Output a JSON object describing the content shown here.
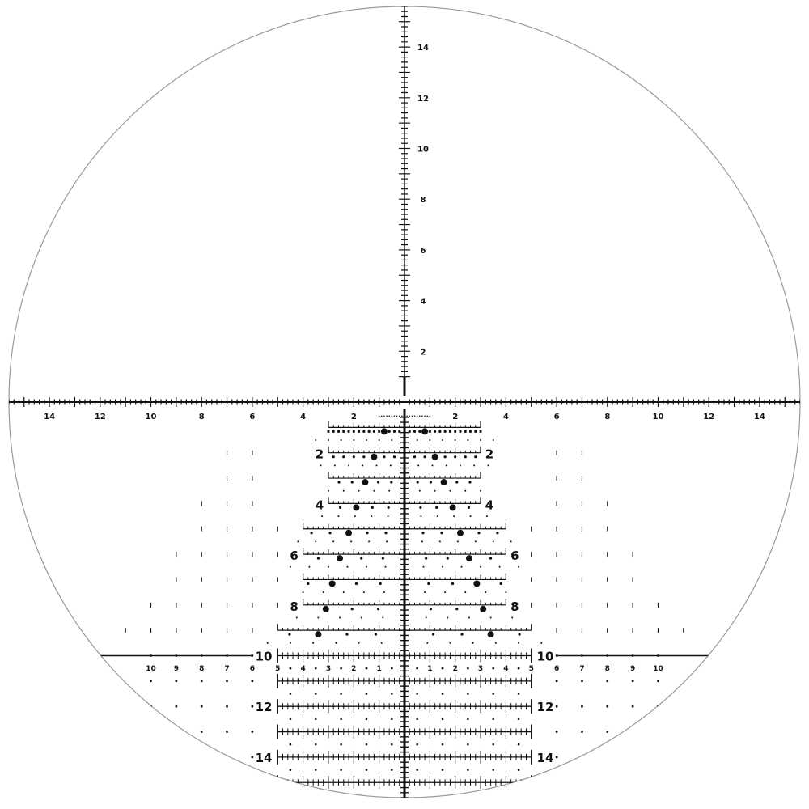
{
  "reticle": {
    "colors": {
      "ink": "#111111",
      "field_ring": "#9a9a9a",
      "background": "#ffffff"
    },
    "horizontal_labels": [
      "2",
      "4",
      "6",
      "8",
      "10",
      "12",
      "14"
    ],
    "vertical_labels": [
      "2",
      "4",
      "6",
      "8",
      "10",
      "12",
      "14"
    ],
    "drop_rows": [
      {
        "row": 1,
        "extent": 3,
        "hold": 0.8,
        "label": "",
        "side_max": 0
      },
      {
        "row": 2,
        "extent": 3,
        "hold": 1.2,
        "label": "2",
        "side_max": 7
      },
      {
        "row": 3,
        "extent": 3,
        "hold": 1.55,
        "label": "",
        "side_max": 7
      },
      {
        "row": 4,
        "extent": 3,
        "hold": 1.9,
        "label": "4",
        "side_max": 8
      },
      {
        "row": 5,
        "extent": 4,
        "hold": 2.2,
        "label": "",
        "side_max": 8
      },
      {
        "row": 6,
        "extent": 4,
        "hold": 2.55,
        "label": "6",
        "side_max": 9
      },
      {
        "row": 7,
        "extent": 4,
        "hold": 2.85,
        "label": "",
        "side_max": 9
      },
      {
        "row": 8,
        "extent": 4,
        "hold": 3.1,
        "label": "8",
        "side_max": 10
      },
      {
        "row": 9,
        "extent": 5,
        "hold": 3.4,
        "label": "",
        "side_max": 11
      }
    ],
    "ladder_rows": [
      {
        "row": 10,
        "label": "10"
      },
      {
        "row": 11,
        "label": ""
      },
      {
        "row": 12,
        "label": "12"
      },
      {
        "row": 13,
        "label": ""
      },
      {
        "row": 14,
        "label": "14"
      },
      {
        "row": 15,
        "label": ""
      }
    ],
    "wind_scale_labels": [
      "1",
      "2",
      "3",
      "4",
      "5"
    ],
    "outer_scale_labels": [
      "6",
      "7",
      "8",
      "9",
      "10"
    ]
  }
}
